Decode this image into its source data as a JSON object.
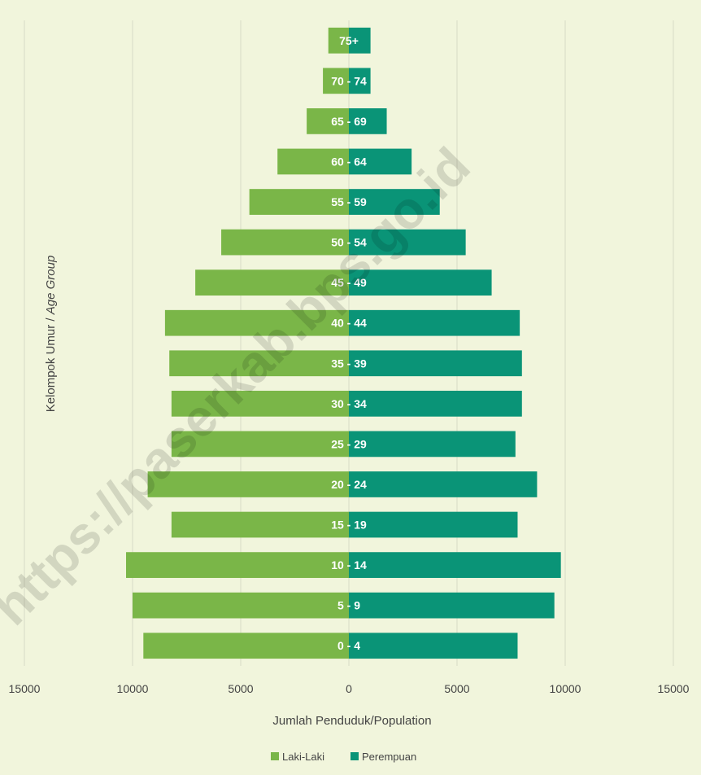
{
  "chart_data": {
    "type": "bar",
    "orientation": "horizontal-population-pyramid",
    "categories": [
      "0 - 4",
      "5 - 9",
      "10 - 14",
      "15 - 19",
      "20 - 24",
      "25 - 29",
      "30 - 34",
      "35 - 39",
      "40 - 44",
      "45 - 49",
      "50 - 54",
      "55 - 59",
      "60 - 64",
      "65 - 69",
      "70 - 74",
      "75+"
    ],
    "series": [
      {
        "name": "Laki-Laki",
        "color": "#7ab648",
        "values": [
          9500,
          10000,
          10300,
          8200,
          9300,
          8200,
          8200,
          8300,
          8500,
          7100,
          5900,
          4600,
          3300,
          1950,
          1200,
          950
        ]
      },
      {
        "name": "Perempuan",
        "color": "#0a9477",
        "values": [
          7800,
          9500,
          9800,
          7800,
          8700,
          7700,
          8000,
          8000,
          7900,
          6600,
          5400,
          4200,
          2900,
          1750,
          1000,
          1000
        ]
      }
    ],
    "xlabel": "Jumlah Penduduk/Population",
    "ylabel_normal": "Kelompok Umur / ",
    "ylabel_italic": "Age Group",
    "xticks": [
      "15000",
      "10000",
      "5000",
      "0",
      "5000",
      "10000",
      "15000"
    ],
    "xlim": [
      -15000,
      15000
    ],
    "grid": "vertical",
    "legend": "bottom"
  },
  "watermark": "https://paserkab.bps.go.id"
}
